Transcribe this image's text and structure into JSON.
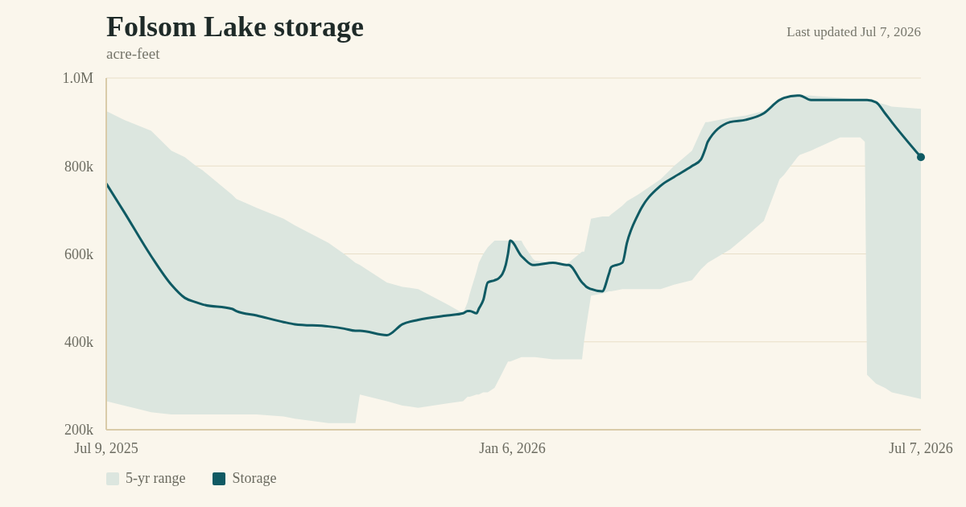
{
  "chart_data": {
    "type": "line",
    "title": "Folsom Lake storage",
    "subtitle": "acre-feet",
    "annotations": [
      "Last updated Jul 7, 2026",
      "5-yr range"
    ],
    "xlim": [
      "2025-07-09",
      "2026-07-07"
    ],
    "xticks": [
      {
        "value": "2025-07-09",
        "label": "Jul 9, 2025"
      },
      {
        "value": "2026-01-06",
        "label": "Jan 6, 2026"
      },
      {
        "value": "2026-07-07",
        "label": "Jul 7, 2026"
      }
    ],
    "ylim": [
      200000,
      1000000
    ],
    "yticks": [
      {
        "value": 200000,
        "label": "200k"
      },
      {
        "value": 400000,
        "label": "400k"
      },
      {
        "value": 600000,
        "label": "600k"
      },
      {
        "value": 800000,
        "label": "800k"
      },
      {
        "value": 1000000,
        "label": "1.0M"
      }
    ],
    "grid": "y",
    "legend": "bottom",
    "series": [
      {
        "name": "Storage",
        "type": "line",
        "color": "#0f5a63",
        "x": [
          "2025-07-09",
          "2025-07-17",
          "2025-07-29",
          "2025-08-07",
          "2025-08-13",
          "2025-08-18",
          "2025-08-21",
          "2025-09-03",
          "2025-09-05",
          "2025-09-14",
          "2025-09-26",
          "2025-10-01",
          "2025-10-16",
          "2025-10-23",
          "2025-10-28",
          "2025-10-30",
          "2025-11-11",
          "2025-11-18",
          "2025-11-25",
          "2025-12-08",
          "2025-12-15",
          "2025-12-17",
          "2025-12-18",
          "2025-12-21",
          "2025-12-22",
          "2025-12-24",
          "2025-12-26",
          "2025-12-29",
          "2025-12-31",
          "2026-01-03",
          "2026-01-04",
          "2026-01-05",
          "2026-01-10",
          "2026-01-11",
          "2026-01-15",
          "2026-01-16",
          "2026-01-24",
          "2026-01-30",
          "2026-01-31",
          "2026-02-06",
          "2026-02-07",
          "2026-02-08",
          "2026-02-10",
          "2026-02-15",
          "2026-02-18",
          "2026-02-19",
          "2026-02-24",
          "2026-02-26",
          "2026-03-03",
          "2026-03-13",
          "2026-03-19",
          "2026-03-27",
          "2026-03-31",
          "2026-04-02",
          "2026-04-03",
          "2026-04-13",
          "2026-04-20",
          "2026-04-28",
          "2026-05-05",
          "2026-05-07",
          "2026-05-13",
          "2026-05-14",
          "2026-05-19",
          "2026-06-01",
          "2026-06-09",
          "2026-06-10",
          "2026-06-12",
          "2026-06-13",
          "2026-06-17",
          "2026-06-21",
          "2026-06-24",
          "2026-07-07"
        ],
        "values": [
          760000,
          695000,
          595000,
          530000,
          500000,
          490000,
          485000,
          475000,
          470000,
          460000,
          445000,
          440000,
          435000,
          430000,
          425000,
          425000,
          415000,
          440000,
          450000,
          460000,
          465000,
          470000,
          470000,
          465000,
          475000,
          495000,
          535000,
          540000,
          545000,
          575000,
          600000,
          630000,
          595000,
          590000,
          575000,
          575000,
          580000,
          575000,
          575000,
          535000,
          530000,
          525000,
          520000,
          515000,
          555000,
          570000,
          580000,
          625000,
          690000,
          755000,
          775000,
          800000,
          815000,
          840000,
          855000,
          900000,
          905000,
          920000,
          950000,
          955000,
          960000,
          960000,
          950000,
          950000,
          950000,
          950000,
          950000,
          950000,
          945000,
          920000,
          900000,
          820000
        ],
        "lower": [
          265000,
          255000,
          240000,
          235000,
          235000,
          235000,
          235000,
          235000,
          235000,
          235000,
          230000,
          225000,
          215000,
          215000,
          215000,
          280000,
          265000,
          255000,
          250000,
          260000,
          265000,
          275000,
          275000,
          280000,
          280000,
          285000,
          285000,
          295000,
          315000,
          345000,
          355000,
          355000,
          365000,
          365000,
          365000,
          365000,
          360000,
          360000,
          360000,
          360000,
          405000,
          440000,
          505000,
          510000,
          515000,
          515000,
          520000,
          520000,
          520000,
          520000,
          530000,
          540000,
          565000,
          575000,
          580000,
          610000,
          640000,
          675000,
          770000,
          780000,
          820000,
          825000,
          835000,
          865000,
          865000,
          865000,
          855000,
          325000,
          305000,
          295000,
          285000,
          270000
        ],
        "upper": [
          925000,
          905000,
          880000,
          835000,
          820000,
          800000,
          790000,
          735000,
          725000,
          705000,
          680000,
          665000,
          625000,
          600000,
          580000,
          575000,
          535000,
          525000,
          520000,
          485000,
          465000,
          490000,
          510000,
          560000,
          580000,
          600000,
          615000,
          630000,
          630000,
          630000,
          630000,
          630000,
          630000,
          620000,
          590000,
          585000,
          580000,
          575000,
          580000,
          605000,
          605000,
          630000,
          680000,
          685000,
          685000,
          690000,
          710000,
          720000,
          735000,
          770000,
          800000,
          835000,
          880000,
          900000,
          900000,
          910000,
          915000,
          925000,
          955000,
          955000,
          960000,
          960000,
          960000,
          955000,
          950000,
          950000,
          950000,
          950000,
          945000,
          940000,
          935000,
          930000
        ]
      }
    ]
  }
}
